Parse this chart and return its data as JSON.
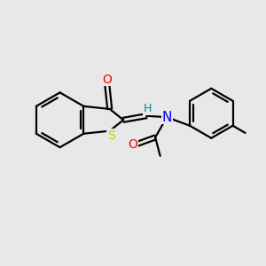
{
  "background_color": "#e8e8e8",
  "bond_color": "#000000",
  "atom_colors": {
    "O": "#ff0000",
    "S": "#cccc00",
    "N": "#0000ff",
    "H": "#008b8b",
    "C": "#000000"
  },
  "figsize": [
    3.0,
    3.0
  ],
  "dpi": 100,
  "lw": 1.6
}
